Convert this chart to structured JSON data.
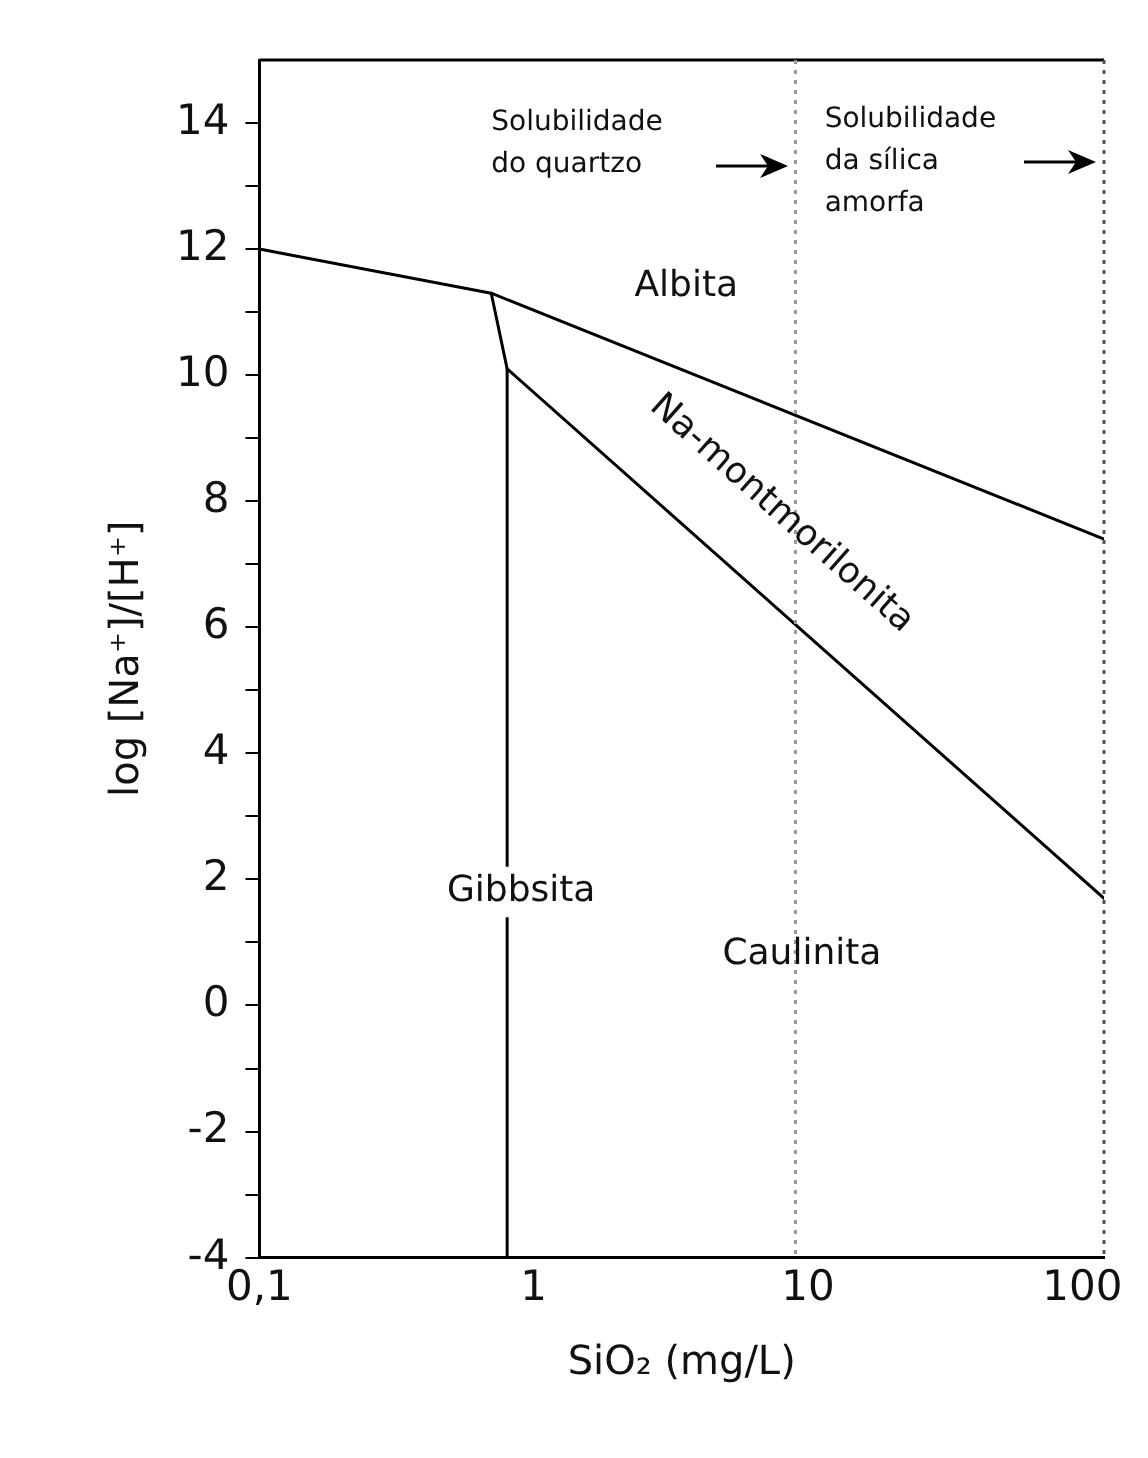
{
  "chart_data": {
    "type": "line",
    "xlabel": "SiO₂ (mg/L)",
    "ylabel": "log [Na⁺]/[H⁺]",
    "log": "x",
    "grid": false,
    "legend": false,
    "marker": "none",
    "line_style": "solid",
    "xlim": [
      0.1,
      120
    ],
    "xticks": [
      {
        "value": 0.1,
        "label": "0,1"
      },
      1,
      10,
      100
    ],
    "ylim": [
      -4,
      15
    ],
    "yticks": [
      -4,
      {
        "value": -3,
        "label": null
      },
      -2,
      {
        "value": -1,
        "label": null
      },
      0,
      {
        "value": 1,
        "label": null
      },
      2,
      {
        "value": 3,
        "label": null
      },
      4,
      {
        "value": 5,
        "label": null
      },
      6,
      {
        "value": 7,
        "label": null
      },
      8,
      {
        "value": 9,
        "label": null
      },
      10,
      {
        "value": 11,
        "label": null
      },
      12,
      {
        "value": 13,
        "label": null
      },
      14
    ],
    "series": [
      {
        "color": "#000000",
        "x": [
          0.1,
          0.7,
          120
        ],
        "values": [
          12,
          11.3,
          7.4
        ]
      },
      {
        "color": "#000000",
        "x": [
          0.7,
          0.8,
          120
        ],
        "values": [
          11.3,
          10.1,
          1.7
        ]
      },
      {
        "color": "#000000",
        "x": [
          0.8,
          0.8
        ],
        "values": [
          10.1,
          -4
        ]
      }
    ],
    "ref_lines": [
      {
        "axis": "x",
        "value": 9,
        "color": "#999999",
        "line_style": "dotted"
      },
      {
        "axis": "x",
        "value": 120,
        "color": "#555555",
        "line_style": "dotted"
      }
    ],
    "annotations": [
      "Solubilidade do quartzo",
      "Solubilidade da sílica amorfa",
      "Albita",
      "Na-montmorilonita",
      "Gibbsita",
      "Caulinita"
    ]
  }
}
